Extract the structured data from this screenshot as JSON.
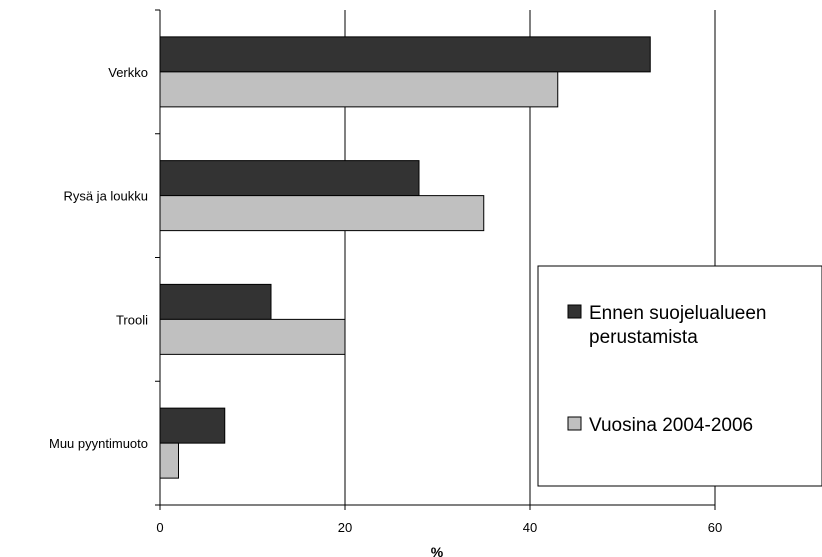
{
  "chart_data": {
    "type": "bar",
    "orientation": "horizontal",
    "categories": [
      "Verkko",
      "Rysä ja loukku",
      "Trooli",
      "Muu pyyntimuoto"
    ],
    "series": [
      {
        "name": "Ennen suojelualueen perustamista",
        "values": [
          53,
          28,
          12,
          7
        ],
        "color": "#333333"
      },
      {
        "name": "Vuosina 2004-2006",
        "values": [
          43,
          35,
          20,
          2
        ],
        "color": "#c0c0c0"
      }
    ],
    "title": "",
    "xlabel": "%",
    "ylabel": "",
    "xlim": [
      0,
      60
    ],
    "xticks": [
      "0",
      "20",
      "40",
      "60"
    ],
    "grid": "vertical",
    "legend_position": "bottom-right"
  },
  "legend": {
    "line1": "Ennen suojelualueen",
    "line2": "perustamista",
    "line3": "Vuosina 2004-2006"
  }
}
